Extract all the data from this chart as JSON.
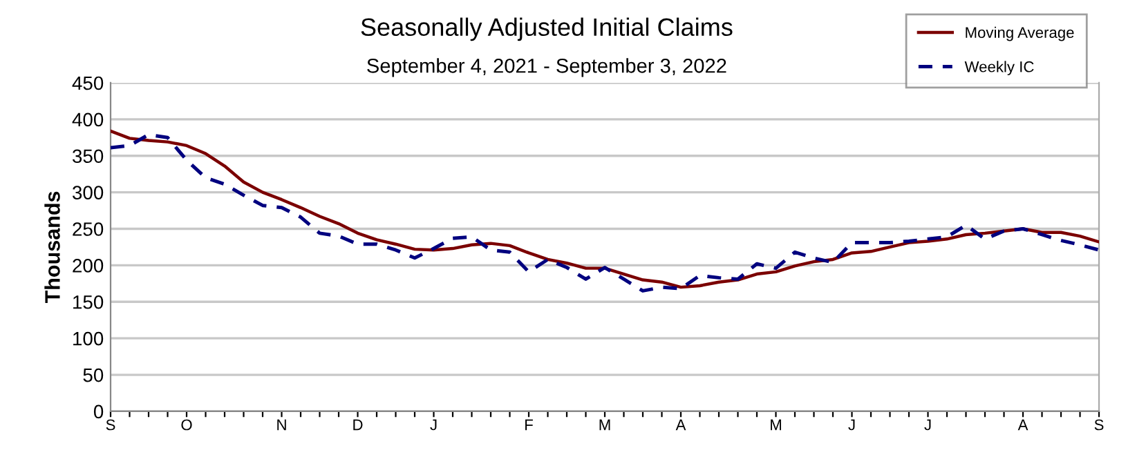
{
  "chart_data": {
    "type": "line",
    "title": "Seasonally Adjusted Initial Claims",
    "subtitle": "September 4, 2021 - September 3, 2022",
    "ylabel": "Thousands",
    "categories": [
      "S",
      null,
      null,
      null,
      "O",
      null,
      null,
      null,
      null,
      "N",
      null,
      null,
      null,
      "D",
      null,
      null,
      null,
      "J",
      null,
      null,
      null,
      null,
      "F",
      null,
      null,
      null,
      "M",
      null,
      null,
      null,
      "A",
      null,
      null,
      null,
      null,
      "M",
      null,
      null,
      null,
      "J",
      null,
      null,
      null,
      "J",
      null,
      null,
      null,
      null,
      "A",
      null,
      null,
      null,
      "S"
    ],
    "series": [
      {
        "name": "Moving Average",
        "color": "#7b0000",
        "line_style": "solid",
        "values": [
          384,
          374,
          371,
          369,
          364,
          353,
          336,
          314,
          300,
          290,
          279,
          267,
          257,
          244,
          235,
          229,
          222,
          221,
          223,
          228,
          230,
          227,
          217,
          208,
          203,
          196,
          196,
          188,
          180,
          177,
          170,
          172,
          177,
          180,
          188,
          191,
          199,
          205,
          208,
          217,
          219,
          225,
          231,
          233,
          236,
          242,
          244,
          247,
          250,
          245,
          245,
          240,
          232
        ]
      },
      {
        "name": "Weekly IC",
        "color": "#00007f",
        "line_style": "dashed",
        "values": [
          361,
          364,
          379,
          375,
          344,
          320,
          311,
          296,
          282,
          279,
          266,
          244,
          240,
          229,
          229,
          221,
          210,
          223,
          237,
          239,
          221,
          218,
          191,
          208,
          197,
          181,
          197,
          181,
          165,
          170,
          168,
          186,
          183,
          181,
          202,
          196,
          218,
          210,
          204,
          231,
          231,
          231,
          233,
          236,
          239,
          255,
          236,
          247,
          250,
          242,
          234,
          228,
          221
        ]
      }
    ],
    "ylim": [
      0,
      450
    ],
    "yticks": [
      0,
      50,
      100,
      150,
      200,
      250,
      300,
      350,
      400,
      450
    ],
    "grid": "y",
    "legend": "top right",
    "marker": "none"
  }
}
